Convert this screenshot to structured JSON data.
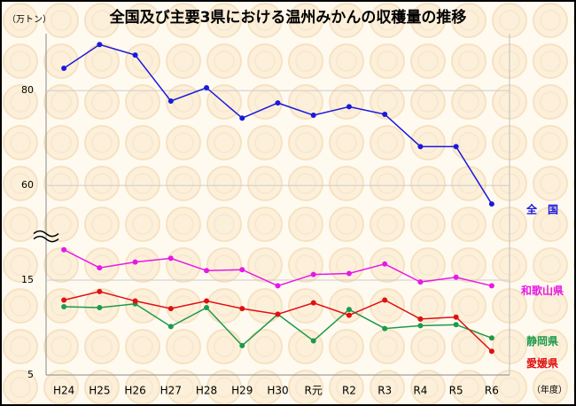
{
  "chart_data": {
    "type": "line",
    "title": "全国及び主要3県における温州みかんの収穫量の推移",
    "y_label": "（万トン）",
    "x_label": "（年度）",
    "categories": [
      "H24",
      "H25",
      "H26",
      "H27",
      "H28",
      "H29",
      "H30",
      "R元",
      "R2",
      "R3",
      "R4",
      "R5",
      "R6"
    ],
    "series": [
      {
        "name": "全　国",
        "color": "#1a1adc",
        "values": [
          84.7,
          89.7,
          87.5,
          77.8,
          80.6,
          74.2,
          77.4,
          74.8,
          76.6,
          75.0,
          68.2,
          68.2,
          56.1
        ]
      },
      {
        "name": "和歌山県",
        "color": "#e619e6",
        "values": [
          18.2,
          16.3,
          16.9,
          17.3,
          16.0,
          16.1,
          14.4,
          15.6,
          15.7,
          16.7,
          14.8,
          15.3,
          14.4
        ]
      },
      {
        "name": "静岡県",
        "color": "#1e9a4a",
        "values": [
          12.2,
          12.1,
          12.5,
          10.1,
          12.1,
          8.1,
          11.4,
          8.6,
          11.9,
          9.9,
          10.2,
          10.3,
          8.9
        ]
      },
      {
        "name": "愛媛県",
        "color": "#e01010",
        "values": [
          12.9,
          13.8,
          12.8,
          12.0,
          12.8,
          12.0,
          11.4,
          12.6,
          11.3,
          12.9,
          10.9,
          11.1,
          7.5
        ]
      }
    ],
    "ylim": [
      5,
      92
    ],
    "yticks": [
      5,
      15,
      60,
      80
    ],
    "y_break": true,
    "grid": true
  }
}
